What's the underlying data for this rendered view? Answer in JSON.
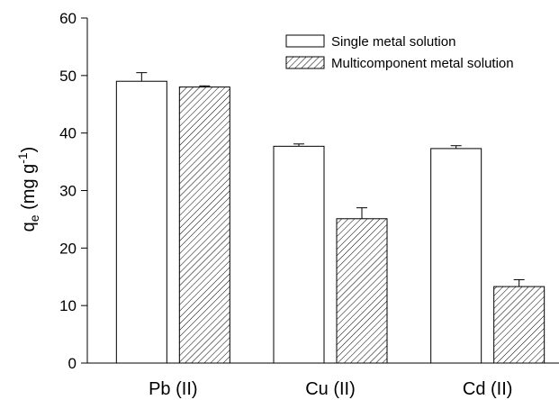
{
  "chart_data": {
    "type": "bar",
    "categories": [
      "Pb (II)",
      "Cu (II)",
      "Cd (II)"
    ],
    "series": [
      {
        "name": "Single metal solution",
        "values": [
          49.0,
          37.7,
          37.3
        ],
        "errors": [
          1.5,
          0.4,
          0.5
        ],
        "fill": "#ffffff"
      },
      {
        "name": "Multicomponent metal solution",
        "values": [
          48.0,
          25.1,
          13.3
        ],
        "errors": [
          0.2,
          1.9,
          1.2
        ],
        "fill": "hatched"
      }
    ],
    "ylabel": {
      "main": "q",
      "subscript": "e",
      "unit_prefix": " (mg g",
      "unit_superscript": "-1",
      "unit_suffix": ")"
    },
    "ylim": [
      0,
      60
    ],
    "yticks": [
      0,
      10,
      20,
      30,
      40,
      50,
      60
    ],
    "legend_position": "top-right",
    "grid": false
  }
}
